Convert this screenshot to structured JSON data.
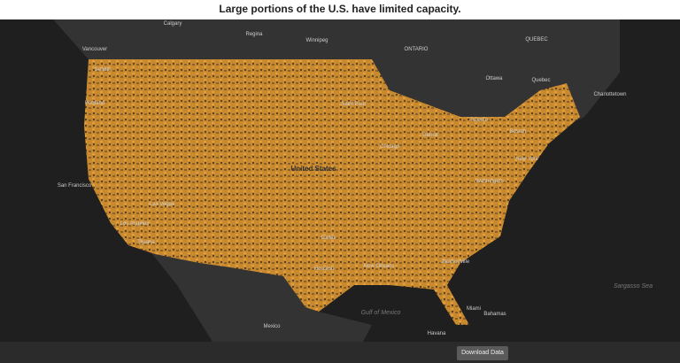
{
  "header": {
    "title": "Large portions of the U.S. have limited capacity."
  },
  "map": {
    "labels": [
      "Calgary",
      "Regina",
      "Winnipeg",
      "Vancouver",
      "Seattle",
      "Portland",
      "San Francisco",
      "Las Vegas",
      "Los Angeles",
      "Tijuana",
      "Saint Paul",
      "Chicago",
      "Detroit",
      "Toronto",
      "Ottawa",
      "Quebec",
      "Charlottetown",
      "Boston",
      "New York",
      "Washington",
      "United States",
      "Dallas",
      "Houston",
      "New Orleans",
      "Jacksonville",
      "Miami",
      "Havana",
      "Bahamas",
      "Gulf of Mexico",
      "Mexico",
      "Sargasso Sea",
      "ONTARIO",
      "QUEBEC"
    ]
  },
  "footer": {
    "button": "Download Data"
  }
}
